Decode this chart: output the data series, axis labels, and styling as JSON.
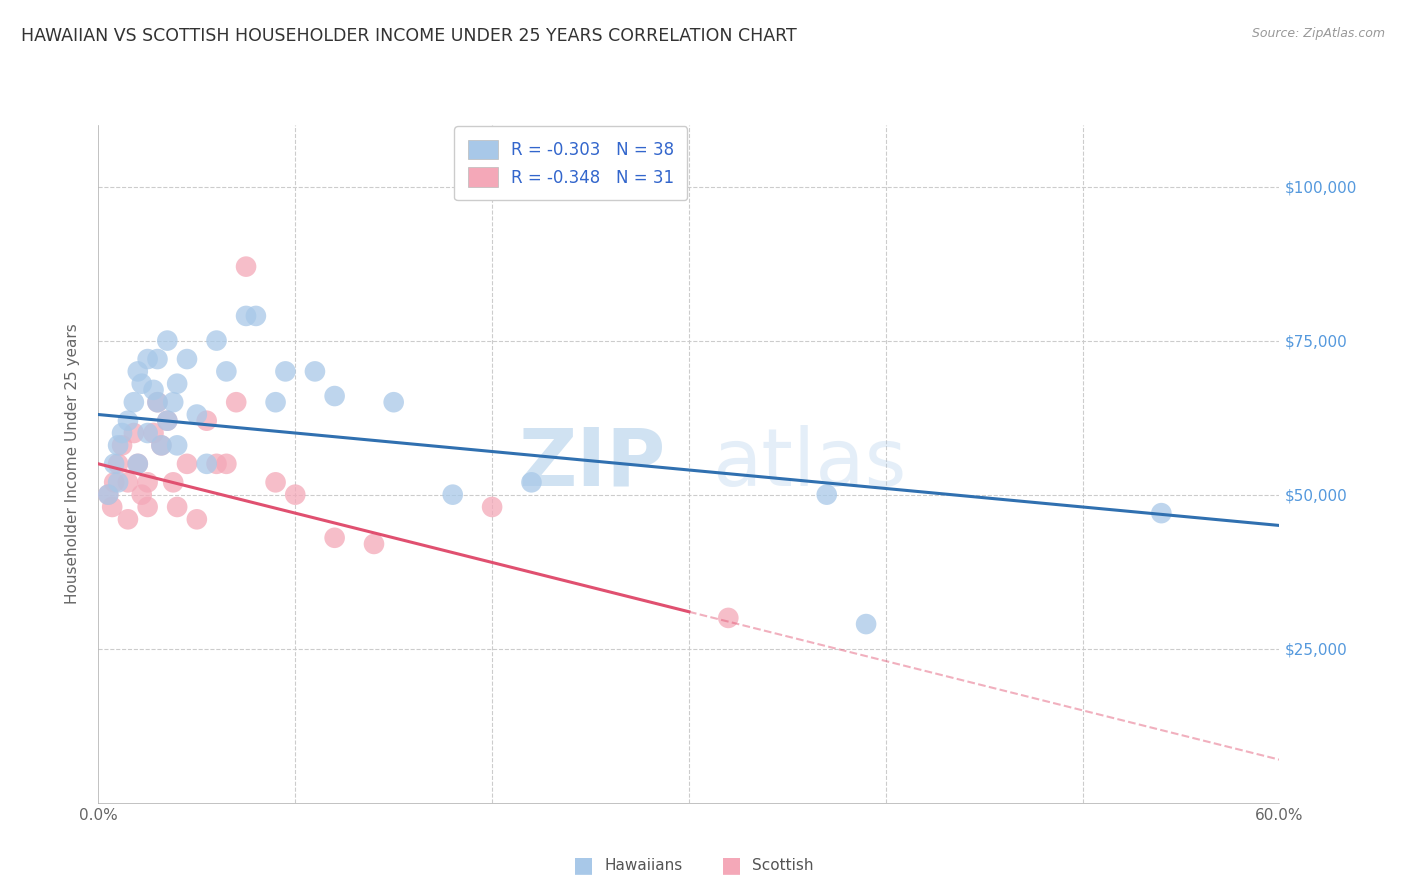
{
  "title": "HAWAIIAN VS SCOTTISH HOUSEHOLDER INCOME UNDER 25 YEARS CORRELATION CHART",
  "source": "Source: ZipAtlas.com",
  "ylabel": "Householder Income Under 25 years",
  "xmin": 0.0,
  "xmax": 0.6,
  "ymin": 0,
  "ymax": 110000,
  "yticks": [
    0,
    25000,
    50000,
    75000,
    100000
  ],
  "ytick_labels": [
    "",
    "$25,000",
    "$50,000",
    "$75,000",
    "$100,000"
  ],
  "hgrid_vals": [
    25000,
    50000,
    75000,
    100000
  ],
  "vgrid_vals": [
    0.1,
    0.2,
    0.3,
    0.4,
    0.5
  ],
  "hawaiian_color": "#a8c8e8",
  "scottish_color": "#f4a8b8",
  "hawaiian_line_color": "#3070b0",
  "scottish_line_color": "#e05070",
  "hawaiian_R": -0.303,
  "hawaiian_N": 38,
  "scottish_R": -0.348,
  "scottish_N": 31,
  "legend_label1": "Hawaiians",
  "legend_label2": "Scottish",
  "watermark_zip": "ZIP",
  "watermark_atlas": "atlas",
  "background_color": "#ffffff",
  "hawaiian_line_x0": 0.0,
  "hawaiian_line_y0": 63000,
  "hawaiian_line_x1": 0.6,
  "hawaiian_line_y1": 45000,
  "scottish_line_solid_x0": 0.0,
  "scottish_line_solid_y0": 55000,
  "scottish_line_solid_x1": 0.3,
  "scottish_line_solid_y1": 31000,
  "scottish_line_dash_x0": 0.3,
  "scottish_line_dash_y0": 31000,
  "scottish_line_dash_x1": 0.6,
  "scottish_line_dash_y1": 7000,
  "hawaiian_x": [
    0.005,
    0.008,
    0.01,
    0.01,
    0.012,
    0.015,
    0.018,
    0.02,
    0.02,
    0.022,
    0.025,
    0.025,
    0.028,
    0.03,
    0.03,
    0.032,
    0.035,
    0.035,
    0.038,
    0.04,
    0.04,
    0.045,
    0.05,
    0.055,
    0.06,
    0.065,
    0.075,
    0.08,
    0.09,
    0.095,
    0.11,
    0.12,
    0.15,
    0.18,
    0.22,
    0.37,
    0.39,
    0.54
  ],
  "hawaiian_y": [
    50000,
    55000,
    52000,
    58000,
    60000,
    62000,
    65000,
    70000,
    55000,
    68000,
    72000,
    60000,
    67000,
    65000,
    72000,
    58000,
    75000,
    62000,
    65000,
    68000,
    58000,
    72000,
    63000,
    55000,
    75000,
    70000,
    79000,
    79000,
    65000,
    70000,
    70000,
    66000,
    65000,
    50000,
    52000,
    50000,
    29000,
    47000
  ],
  "scottish_x": [
    0.005,
    0.007,
    0.008,
    0.01,
    0.012,
    0.015,
    0.015,
    0.018,
    0.02,
    0.022,
    0.025,
    0.025,
    0.028,
    0.03,
    0.032,
    0.035,
    0.038,
    0.04,
    0.045,
    0.05,
    0.055,
    0.06,
    0.065,
    0.07,
    0.075,
    0.09,
    0.1,
    0.12,
    0.14,
    0.2,
    0.32
  ],
  "scottish_y": [
    50000,
    48000,
    52000,
    55000,
    58000,
    52000,
    46000,
    60000,
    55000,
    50000,
    52000,
    48000,
    60000,
    65000,
    58000,
    62000,
    52000,
    48000,
    55000,
    46000,
    62000,
    55000,
    55000,
    65000,
    87000,
    52000,
    50000,
    43000,
    42000,
    48000,
    30000
  ]
}
